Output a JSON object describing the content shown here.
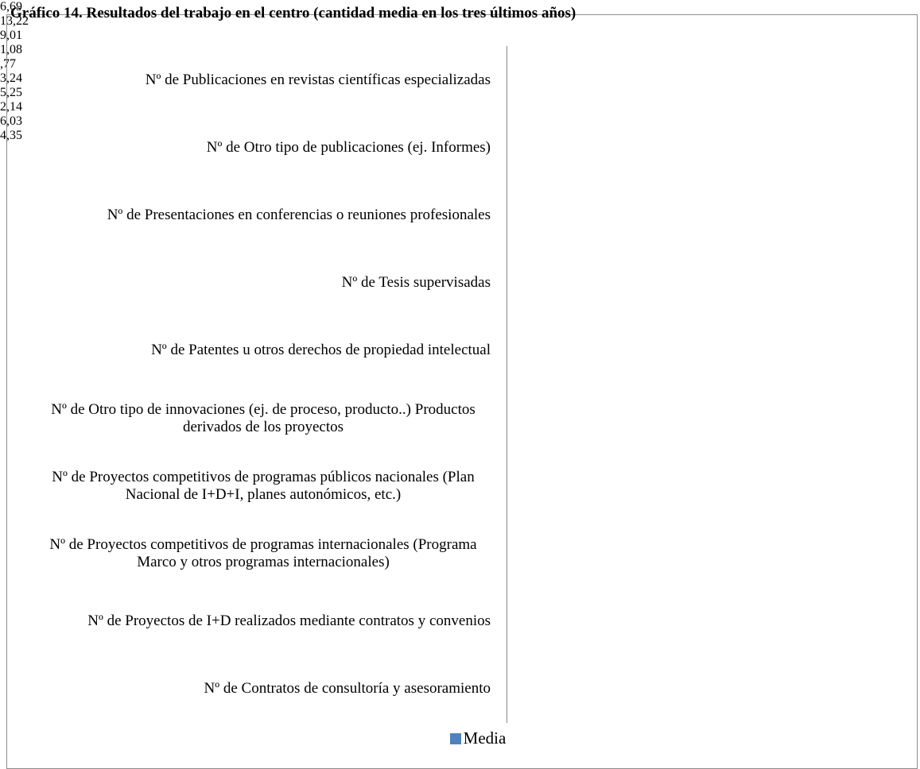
{
  "chart_data": {
    "type": "bar",
    "orientation": "horizontal",
    "title": "Gráfico 14. Resultados del trabajo en el centro (cantidad media en los tres últimos años)",
    "categories": [
      "Nº de Publicaciones en revistas científicas especializadas",
      "Nº de Otro tipo de publicaciones (ej. Informes)",
      "Nº de Presentaciones en conferencias o reuniones profesionales",
      "Nº de Tesis supervisadas",
      "Nº de Patentes u otros derechos de propiedad intelectual",
      "Nº de Otro tipo de innovaciones (ej. de proceso, producto..) Productos derivados de los proyectos",
      "Nº de Proyectos competitivos de programas públicos nacionales (Plan Nacional de I+D+I, planes autonómicos, etc.)",
      "Nº de Proyectos competitivos de programas internacionales (Programa Marco y otros programas internacionales)",
      "Nº de Proyectos de I+D realizados mediante contratos y convenios",
      "Nº de Contratos de consultoría y asesoramiento"
    ],
    "series": [
      {
        "name": "Media",
        "color": "#4f81bd",
        "values": [
          6.69,
          13.22,
          9.01,
          1.08,
          0.77,
          3.24,
          5.25,
          2.14,
          6.03,
          4.35
        ],
        "value_labels": [
          "6,69",
          "13,22",
          "9,01",
          "1,08",
          ",77",
          "3,24",
          "5,25",
          "2,14",
          "6,03",
          "4,35"
        ]
      }
    ],
    "xlim": [
      0,
      14
    ],
    "legend": "bottom"
  }
}
